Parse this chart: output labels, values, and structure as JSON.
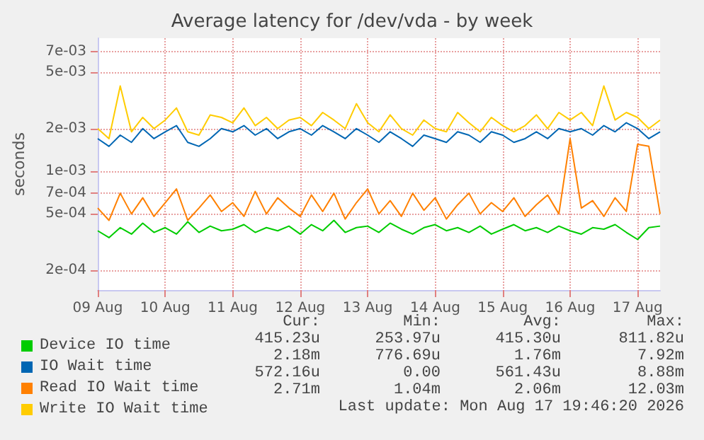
{
  "chart_data": {
    "type": "line",
    "title": "Average latency for /dev/vda - by week",
    "ylabel": "seconds",
    "log": "y",
    "grid": true,
    "legend": "bottom left",
    "marker": "none",
    "line_style": "solid",
    "xlim": [
      "2026-08-09T00:00",
      "2026-08-17T08:00"
    ],
    "xticks": [
      {
        "value": "2026-08-09",
        "label": "09 Aug"
      },
      {
        "value": "2026-08-10",
        "label": "10 Aug"
      },
      {
        "value": "2026-08-11",
        "label": "11 Aug"
      },
      {
        "value": "2026-08-12",
        "label": "12 Aug"
      },
      {
        "value": "2026-08-13",
        "label": "13 Aug"
      },
      {
        "value": "2026-08-14",
        "label": "14 Aug"
      },
      {
        "value": "2026-08-15",
        "label": "15 Aug"
      },
      {
        "value": "2026-08-16",
        "label": "16 Aug"
      },
      {
        "value": "2026-08-17",
        "label": "17 Aug"
      }
    ],
    "ylim": [
      0.000145,
      0.0087
    ],
    "yticks": [
      {
        "value": 0.0002,
        "label": "2e-04"
      },
      {
        "value": 0.0005,
        "label": "5e-04"
      },
      {
        "value": 0.0007,
        "label": "7e-04"
      },
      {
        "value": 0.001,
        "label": "1e-03"
      },
      {
        "value": 0.002,
        "label": "2e-03"
      },
      {
        "value": 0.005,
        "label": "5e-03"
      },
      {
        "value": 0.007,
        "label": "7e-03"
      }
    ],
    "x": [
      "2026-08-09T00:00",
      "2026-08-09T04:00",
      "2026-08-09T08:00",
      "2026-08-09T12:00",
      "2026-08-09T16:00",
      "2026-08-09T20:00",
      "2026-08-10T00:00",
      "2026-08-10T04:00",
      "2026-08-10T08:00",
      "2026-08-10T12:00",
      "2026-08-10T16:00",
      "2026-08-10T20:00",
      "2026-08-11T00:00",
      "2026-08-11T04:00",
      "2026-08-11T08:00",
      "2026-08-11T12:00",
      "2026-08-11T16:00",
      "2026-08-11T20:00",
      "2026-08-12T00:00",
      "2026-08-12T04:00",
      "2026-08-12T08:00",
      "2026-08-12T12:00",
      "2026-08-12T16:00",
      "2026-08-12T20:00",
      "2026-08-13T00:00",
      "2026-08-13T04:00",
      "2026-08-13T08:00",
      "2026-08-13T12:00",
      "2026-08-13T16:00",
      "2026-08-13T20:00",
      "2026-08-14T00:00",
      "2026-08-14T04:00",
      "2026-08-14T08:00",
      "2026-08-14T12:00",
      "2026-08-14T16:00",
      "2026-08-14T20:00",
      "2026-08-15T00:00",
      "2026-08-15T04:00",
      "2026-08-15T08:00",
      "2026-08-15T12:00",
      "2026-08-15T16:00",
      "2026-08-15T20:00",
      "2026-08-16T00:00",
      "2026-08-16T04:00",
      "2026-08-16T08:00",
      "2026-08-16T12:00",
      "2026-08-16T16:00",
      "2026-08-16T20:00",
      "2026-08-17T00:00",
      "2026-08-17T04:00",
      "2026-08-17T08:00"
    ],
    "series": [
      {
        "name": "Device IO time",
        "color": "#00cc00",
        "values": [
          0.00038,
          0.00034,
          0.0004,
          0.00036,
          0.00043,
          0.00037,
          0.0004,
          0.00036,
          0.00044,
          0.00037,
          0.00041,
          0.00038,
          0.00039,
          0.00042,
          0.00037,
          0.0004,
          0.00038,
          0.00041,
          0.00036,
          0.00042,
          0.00038,
          0.00045,
          0.00037,
          0.0004,
          0.00041,
          0.00037,
          0.00043,
          0.00039,
          0.00036,
          0.0004,
          0.00042,
          0.00038,
          0.0004,
          0.00037,
          0.00041,
          0.00036,
          0.00039,
          0.00042,
          0.00038,
          0.0004,
          0.00037,
          0.00041,
          0.00038,
          0.00036,
          0.0004,
          0.00039,
          0.00042,
          0.00037,
          0.00033,
          0.0004,
          0.00041
        ]
      },
      {
        "name": "IO Wait time",
        "color": "#0066b3",
        "values": [
          0.0017,
          0.0015,
          0.0018,
          0.0016,
          0.002,
          0.0017,
          0.0019,
          0.0021,
          0.0016,
          0.0015,
          0.0017,
          0.002,
          0.0019,
          0.0021,
          0.0018,
          0.002,
          0.0017,
          0.0019,
          0.002,
          0.0018,
          0.0021,
          0.0019,
          0.0017,
          0.002,
          0.0018,
          0.0016,
          0.0019,
          0.0017,
          0.0015,
          0.0018,
          0.0017,
          0.0016,
          0.0019,
          0.0018,
          0.0016,
          0.0019,
          0.0018,
          0.0016,
          0.0017,
          0.0019,
          0.0017,
          0.002,
          0.0019,
          0.002,
          0.0018,
          0.0021,
          0.0019,
          0.0022,
          0.002,
          0.0017,
          0.0019
        ]
      },
      {
        "name": "Read IO Wait time",
        "color": "#ff8000",
        "values": [
          0.00055,
          0.00045,
          0.0007,
          0.0005,
          0.00065,
          0.00048,
          0.0006,
          0.00075,
          0.00045,
          0.00055,
          0.00068,
          0.00052,
          0.0006,
          0.00048,
          0.00072,
          0.0005,
          0.00065,
          0.00055,
          0.00048,
          0.00068,
          0.00052,
          0.0007,
          0.00046,
          0.0006,
          0.00075,
          0.0005,
          0.00062,
          0.00048,
          0.0007,
          0.00053,
          0.00065,
          0.00046,
          0.00058,
          0.0007,
          0.0005,
          0.0006,
          0.00052,
          0.00065,
          0.00048,
          0.00058,
          0.00068,
          0.0005,
          0.0017,
          0.00055,
          0.00062,
          0.00048,
          0.00065,
          0.00052,
          0.00155,
          0.0015,
          0.0005
        ]
      },
      {
        "name": "Write IO Wait time",
        "color": "#ffcc00",
        "values": [
          0.002,
          0.0017,
          0.004,
          0.0019,
          0.0024,
          0.002,
          0.0023,
          0.0028,
          0.0019,
          0.0018,
          0.0025,
          0.0024,
          0.0022,
          0.0028,
          0.0021,
          0.0024,
          0.002,
          0.0023,
          0.0024,
          0.0021,
          0.0026,
          0.0023,
          0.002,
          0.003,
          0.0022,
          0.0019,
          0.0025,
          0.002,
          0.0018,
          0.0023,
          0.002,
          0.0019,
          0.0026,
          0.0022,
          0.0019,
          0.0024,
          0.0021,
          0.0019,
          0.0021,
          0.0025,
          0.002,
          0.0026,
          0.0023,
          0.0026,
          0.0021,
          0.004,
          0.0023,
          0.0026,
          0.0024,
          0.002,
          0.0023
        ]
      }
    ],
    "annotations": [
      "Cur:",
      "Min:",
      "Avg:",
      "Max:",
      "415.23u",
      "253.97u",
      "415.30u",
      "811.82u",
      "2.18m",
      "776.69u",
      "1.76m",
      "7.92m",
      "572.16u",
      "0.00",
      "561.43u",
      "8.88m",
      "2.71m",
      "1.04m",
      "2.06m",
      "12.03m",
      "Last update: Mon Aug 17 19:46:20 2026"
    ]
  }
}
